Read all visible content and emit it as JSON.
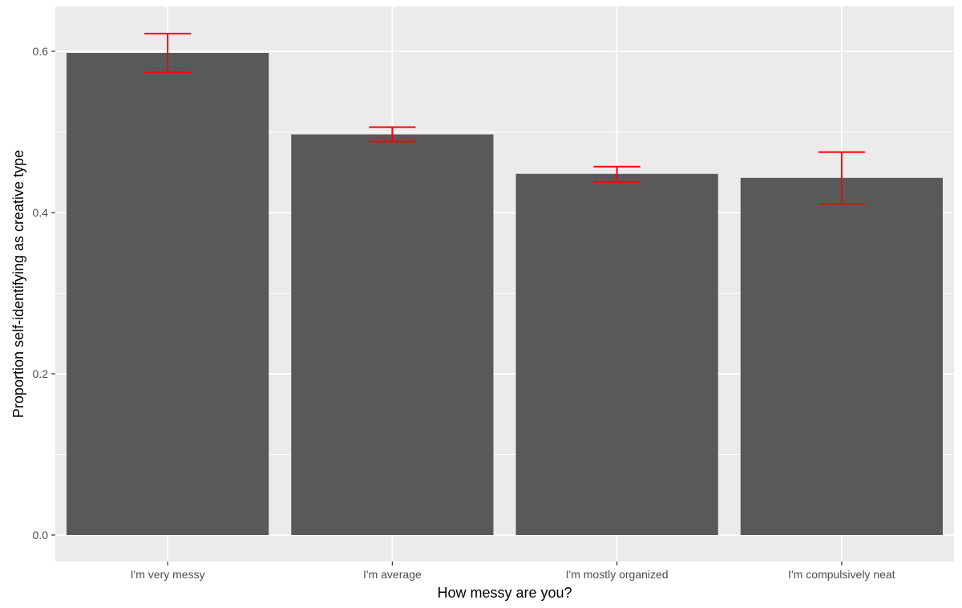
{
  "chart_data": {
    "type": "bar",
    "title": "",
    "xlabel": "How messy are you?",
    "ylabel": "Proportion self-identifying as creative type",
    "categories": [
      "I'm very messy",
      "I'm average",
      "I'm mostly organized",
      "I'm compulsively neat"
    ],
    "values": [
      0.598,
      0.497,
      0.448,
      0.443
    ],
    "error_bars": [
      {
        "low": 0.574,
        "high": 0.622
      },
      {
        "low": 0.488,
        "high": 0.506
      },
      {
        "low": 0.438,
        "high": 0.457
      },
      {
        "low": 0.411,
        "high": 0.475
      }
    ],
    "yticks": [
      0.0,
      0.2,
      0.4,
      0.6
    ],
    "ytick_labels": [
      "0.0",
      "0.2",
      "0.4",
      "0.6"
    ],
    "ylim": [
      -0.03,
      0.65
    ],
    "grid": true,
    "legend": "none",
    "colors": {
      "panel_background": "#ebebeb",
      "grid_line": "#ffffff",
      "bar_fill": "#595959",
      "error_bar": "#ff0000",
      "tick": "#333333"
    }
  }
}
